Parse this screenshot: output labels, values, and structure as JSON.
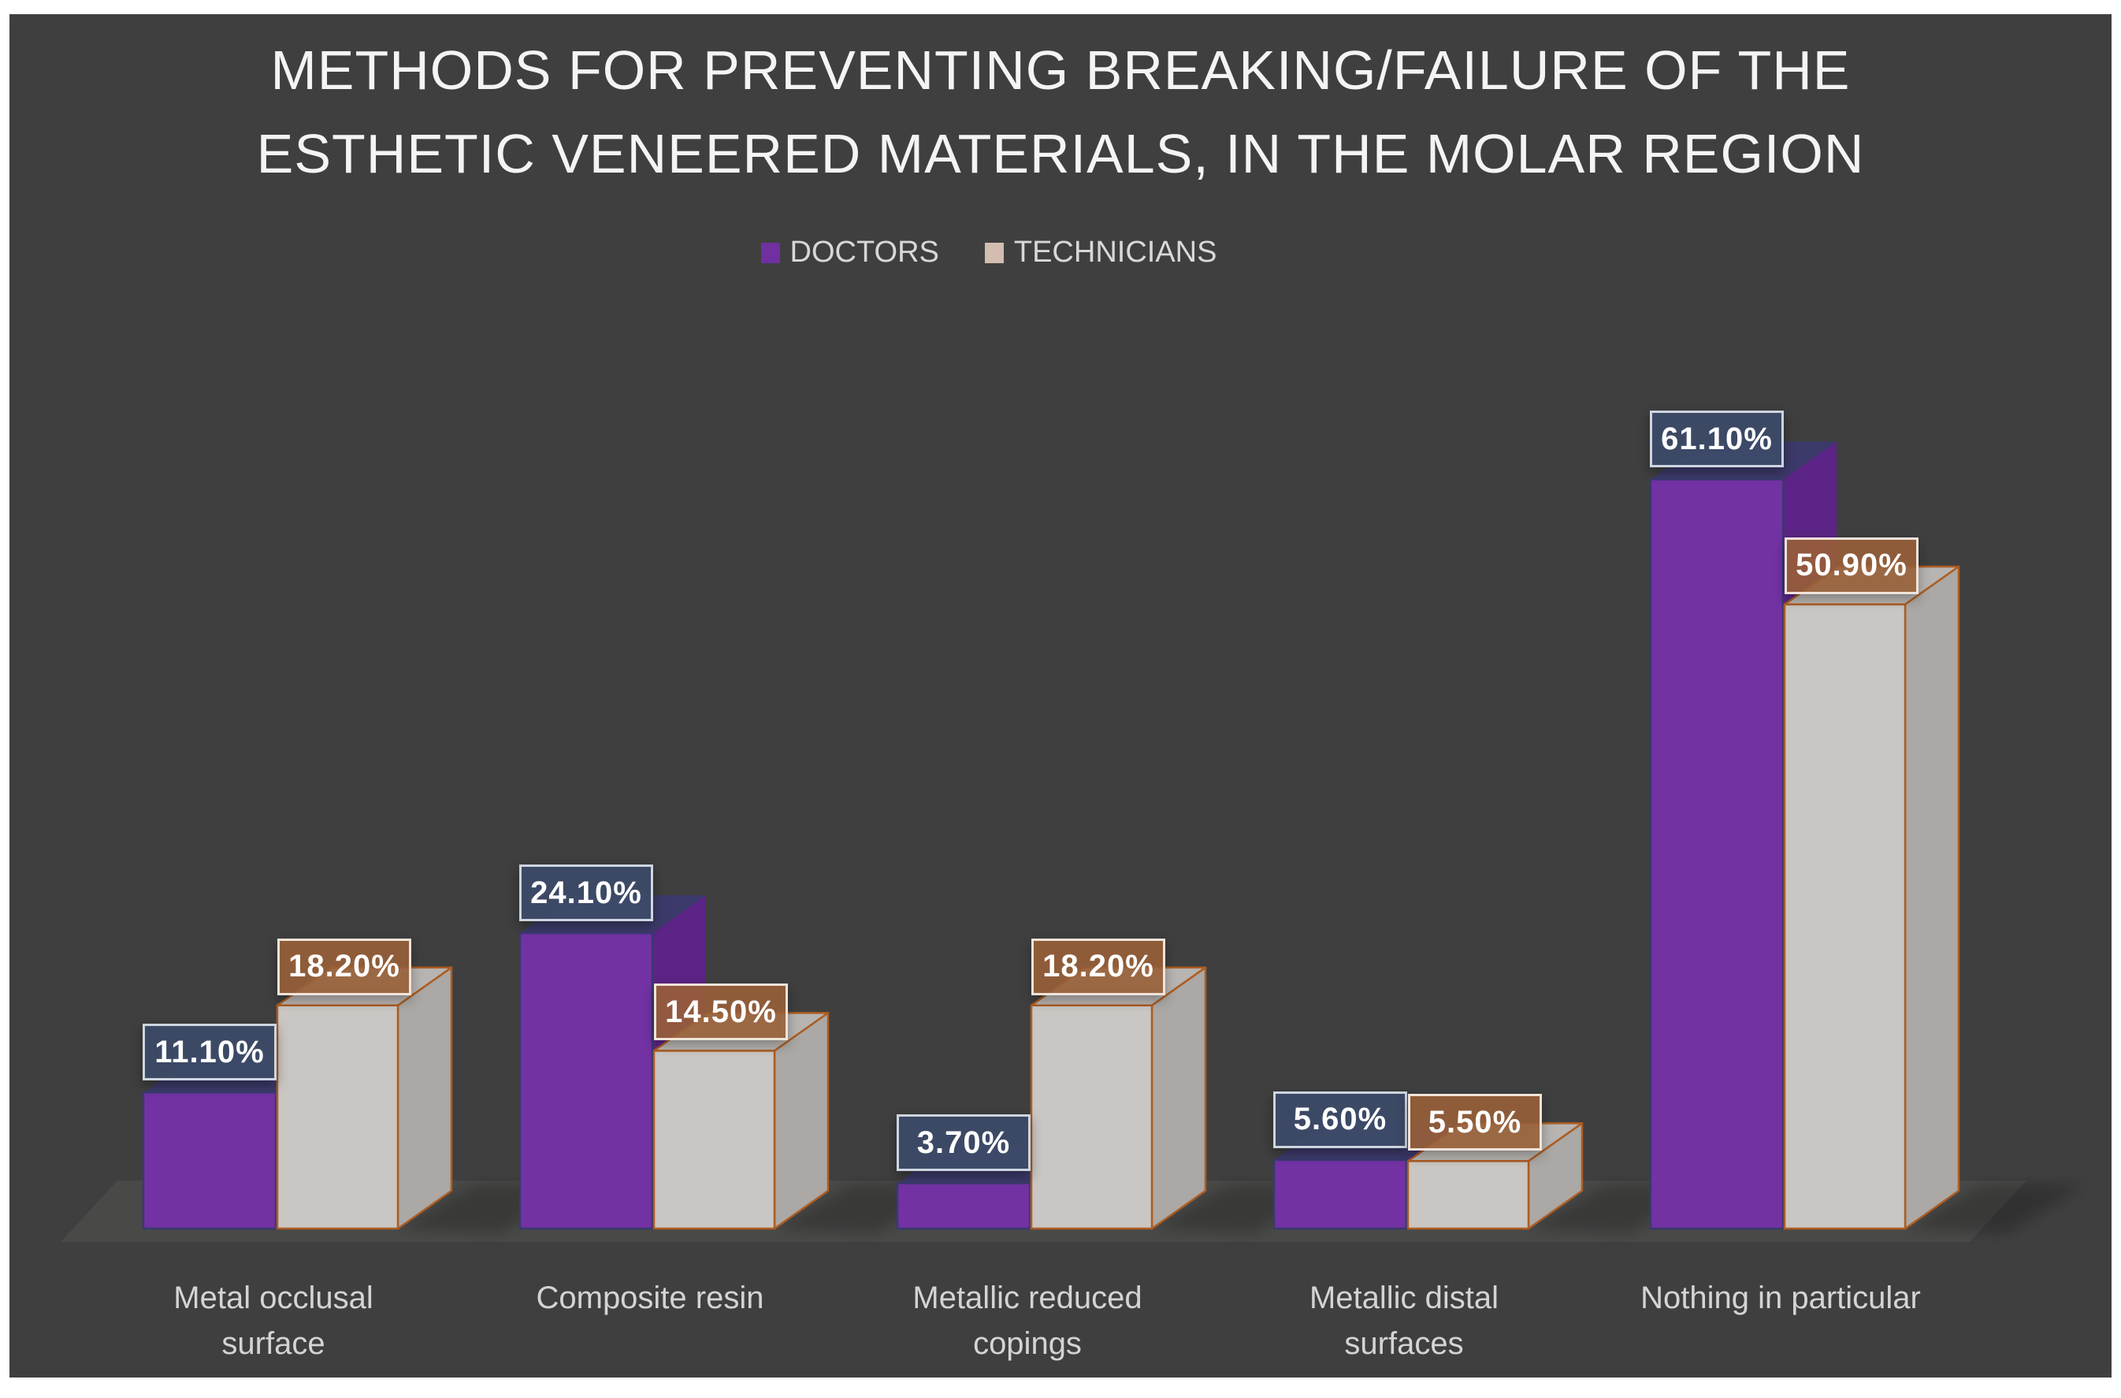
{
  "frame": {
    "outer_background": "#FFFFFF",
    "panel_background": "#3F3F3F"
  },
  "title_lines": [
    "METHODS FOR PREVENTING BREAKING/FAILURE OF THE",
    "ESTHETIC VENEERED MATERIALS, IN THE MOLAR REGION"
  ],
  "chart_data": {
    "type": "bar",
    "style": "3d-clustered-column",
    "title": "METHODS FOR PREVENTING BREAKING/FAILURE OF THE ESTHETIC VENEERED MATERIALS, IN THE MOLAR REGION",
    "categories": [
      "Metal occlusal surface",
      "Composite resin",
      "Metallic reduced copings",
      "Metallic distal surfaces",
      "Nothing in particular"
    ],
    "category_lines": [
      [
        "Metal occlusal",
        "surface"
      ],
      [
        "Composite resin"
      ],
      [
        "Metallic reduced",
        "copings"
      ],
      [
        "Metallic distal",
        "surfaces"
      ],
      [
        "Nothing in particular"
      ]
    ],
    "series": [
      {
        "name": "DOCTORS",
        "values": [
          11.1,
          24.1,
          3.7,
          5.6,
          61.1
        ],
        "labels": [
          "11.10%",
          "24.10%",
          "3.70%",
          "5.60%",
          "61.10%"
        ],
        "color": "#7232A4",
        "side_color": "#5B2486",
        "top_color": "#3C3A6A",
        "outline_color": "#383A6E",
        "swatch_color": "#7030A0",
        "label_box_fill": "#3D4A68",
        "label_box_border": "#CDD5E0"
      },
      {
        "name": "TECHNICIANS",
        "values": [
          18.2,
          14.5,
          18.2,
          5.5,
          50.9
        ],
        "labels": [
          "18.20%",
          "14.50%",
          "18.20%",
          "5.50%",
          "50.90%"
        ],
        "color": "#C9C6C3",
        "side_color": "#ABA8A5",
        "top_color": "#B7B4B1",
        "outline_color": "#AD5D22",
        "swatch_color": "#D3BDB0",
        "label_box_fill": "#985F38",
        "label_box_border": "#F0E3D9"
      }
    ],
    "ylim": [
      0,
      70
    ],
    "gridlines": false,
    "axes_visible": false,
    "legend_position": "top-center",
    "floor_color": "#4A4A49",
    "data_label_text_color": "#FFFFFF",
    "category_text_color": "#D4D4D4",
    "legend_text_color": "#D8D8D8",
    "title_text_color": "#F4F4F4"
  }
}
